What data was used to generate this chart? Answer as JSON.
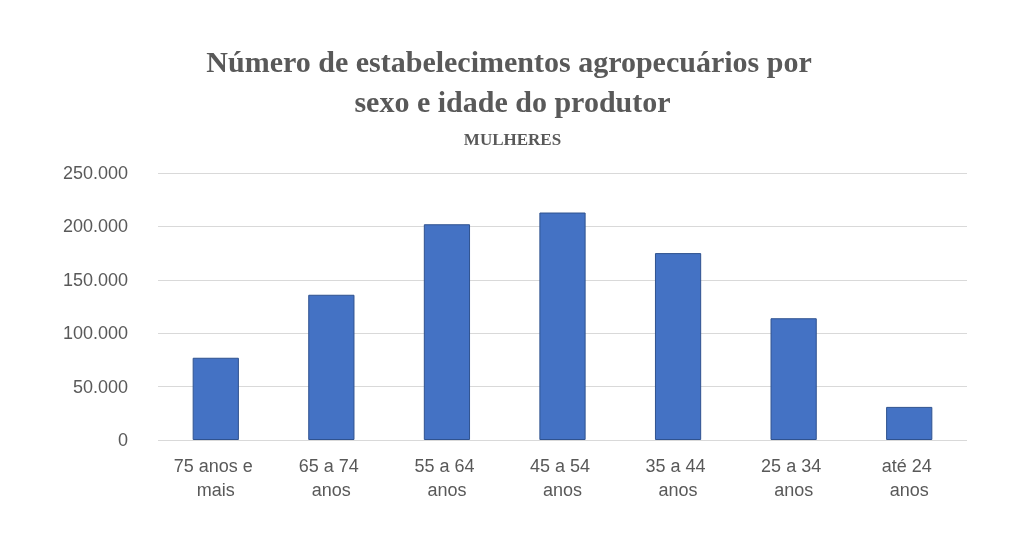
{
  "chart_data": {
    "type": "bar",
    "title": "Número de estabelecimentos agropecuários por sexo e idade do produtor",
    "subtitle": "MULHERES",
    "categories": [
      "75 anos e mais",
      "65 a 74 anos",
      "55 a 64 anos",
      "45 a 54 anos",
      "35 a 44 anos",
      "25 a 34 anos",
      "até 24 anos"
    ],
    "values": [
      77000,
      136000,
      202000,
      213000,
      175000,
      114000,
      31000
    ],
    "color": "#4472c4",
    "ylim": [
      0,
      250000
    ],
    "yticks": [
      0,
      {
        "value": 50000,
        "label": "50.000"
      },
      {
        "value": 100000,
        "label": "100.000"
      },
      {
        "value": 150000,
        "label": "150.000"
      },
      {
        "value": 200000,
        "label": "200.000"
      },
      {
        "value": 250000,
        "label": "250.000"
      }
    ],
    "grid": "y"
  }
}
